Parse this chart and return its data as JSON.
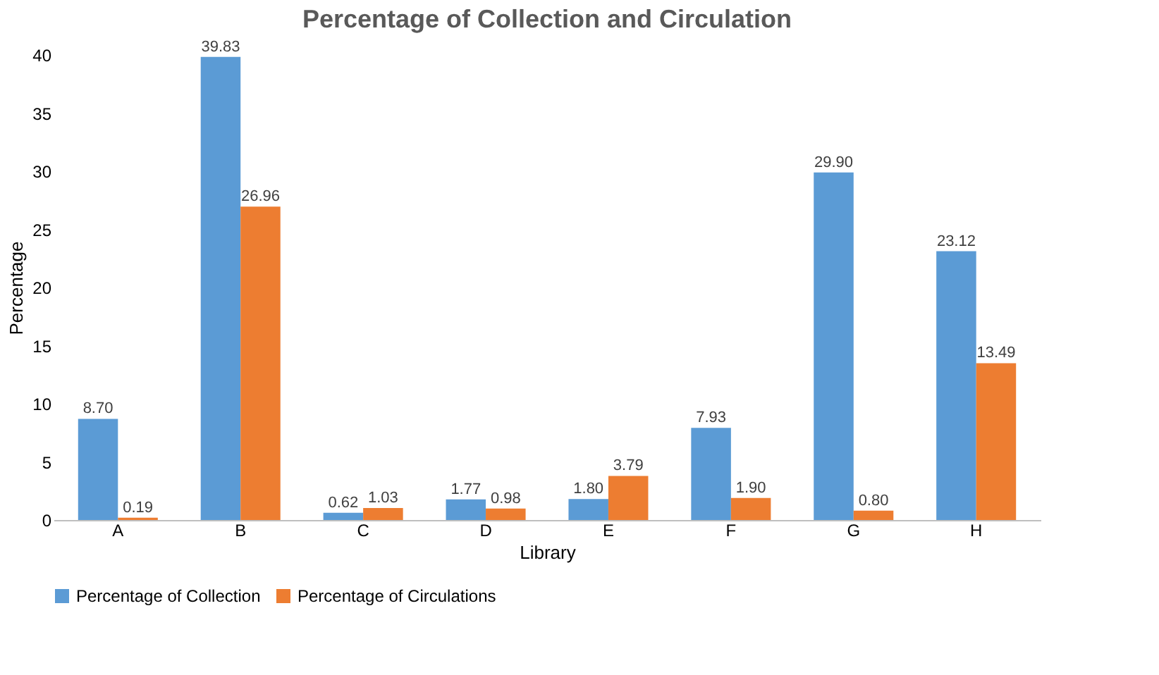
{
  "chart_data": {
    "type": "bar",
    "title": "Percentage of Collection and Circulation",
    "xlabel": "Library",
    "ylabel": "Percentage",
    "categories": [
      "A",
      "B",
      "C",
      "D",
      "E",
      "F",
      "G",
      "H"
    ],
    "series": [
      {
        "name": "Percentage of Collection",
        "color": "#5b9bd5",
        "values": [
          8.7,
          39.83,
          0.62,
          1.77,
          1.8,
          7.93,
          29.9,
          23.12
        ],
        "value_labels": [
          "8.70",
          "39.83",
          "0.62",
          "1.77",
          "1.80",
          "7.93",
          "29.90",
          "23.12"
        ]
      },
      {
        "name": "Percentage of Circulations",
        "color": "#ed7d31",
        "values": [
          0.19,
          26.96,
          1.03,
          0.98,
          3.79,
          1.9,
          0.8,
          13.49
        ],
        "value_labels": [
          "0.19",
          "26.96",
          "1.03",
          "0.98",
          "3.79",
          "1.90",
          "0.80",
          "13.49"
        ]
      }
    ],
    "ylim": [
      0,
      40
    ],
    "yticks": [
      0,
      5,
      10,
      15,
      20,
      25,
      30,
      35,
      40
    ],
    "grid": false,
    "legend": "bottom"
  }
}
